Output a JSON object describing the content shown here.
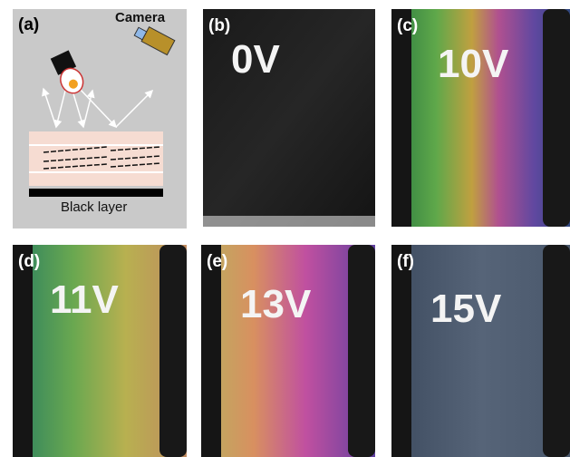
{
  "schematic": {
    "label": "(a)",
    "camera": "Camera",
    "layer": "Black layer"
  },
  "photos": [
    {
      "label": "(b)",
      "voltage": "0V"
    },
    {
      "label": "(c)",
      "voltage": "10V"
    },
    {
      "label": "(d)",
      "voltage": "11V"
    },
    {
      "label": "(e)",
      "voltage": "13V"
    },
    {
      "label": "(f)",
      "voltage": "15V"
    }
  ]
}
